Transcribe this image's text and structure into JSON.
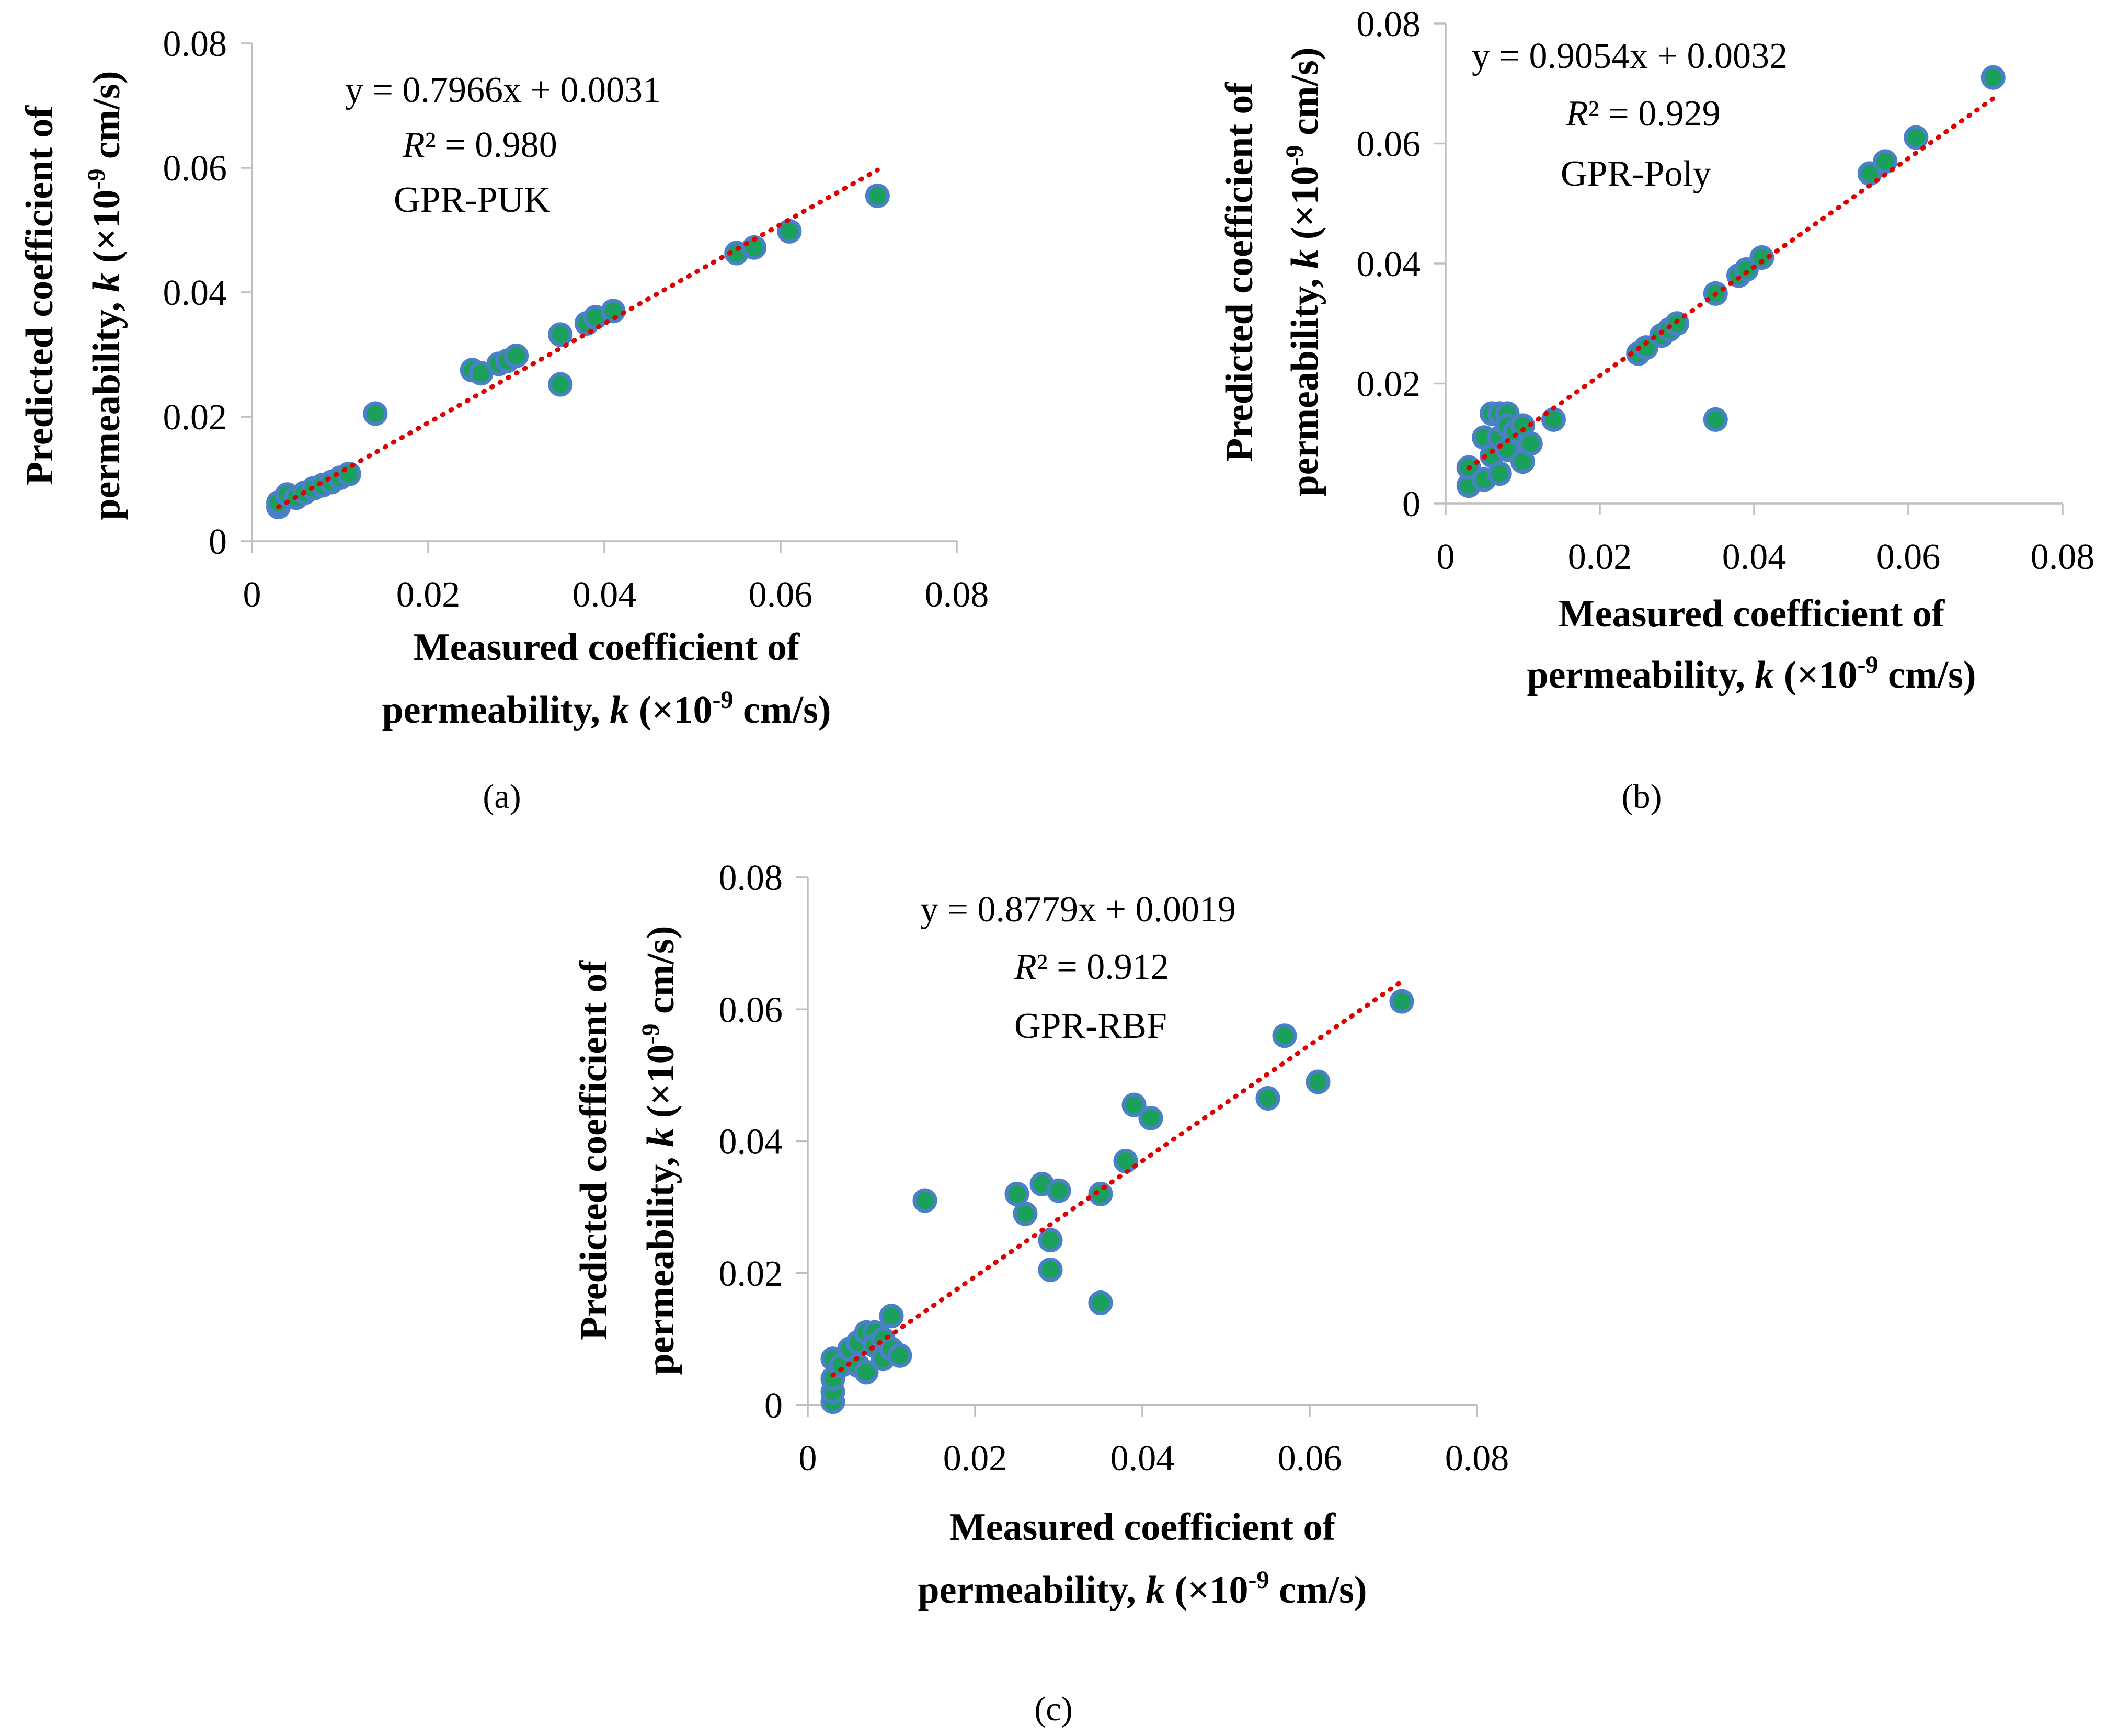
{
  "chart_data": [
    {
      "type": "scatter",
      "panel_label": "(a)",
      "annotation": {
        "equation": "y = 0.7966x + 0.0031",
        "r2_label": "R",
        "r2_value": "² = 0.980",
        "model": "GPR-PUK"
      },
      "xlabel": {
        "line1": "Measured coefficient of",
        "line2_pre": "permeability, ",
        "line2_k": "k",
        "line2_mid": " (×10",
        "line2_exp": "-9",
        "line2_post": " cm/s)"
      },
      "ylabel": {
        "line1": "Predicted coefficient of",
        "line2_pre": "permeability, ",
        "line2_k": "k",
        "line2_mid": " (×10",
        "line2_exp": "-9",
        "line2_post": " cm/s)"
      },
      "xlim": [
        0,
        0.08
      ],
      "ylim": [
        0,
        0.08
      ],
      "xticks": [
        "0",
        "0.02",
        "0.04",
        "0.06",
        "0.08"
      ],
      "yticks": [
        "0",
        "0.02",
        "0.04",
        "0.06",
        "0.08"
      ],
      "trendline": {
        "slope": 0.7966,
        "intercept": 0.0031,
        "x_range": [
          0.003,
          0.071
        ]
      },
      "points": [
        [
          0.003,
          0.0055
        ],
        [
          0.003,
          0.0062
        ],
        [
          0.004,
          0.0075
        ],
        [
          0.005,
          0.007
        ],
        [
          0.006,
          0.0078
        ],
        [
          0.007,
          0.0085
        ],
        [
          0.008,
          0.009
        ],
        [
          0.009,
          0.0095
        ],
        [
          0.01,
          0.0102
        ],
        [
          0.011,
          0.0108
        ],
        [
          0.014,
          0.0205
        ],
        [
          0.025,
          0.0275
        ],
        [
          0.026,
          0.027
        ],
        [
          0.028,
          0.0285
        ],
        [
          0.029,
          0.029
        ],
        [
          0.03,
          0.0298
        ],
        [
          0.035,
          0.0332
        ],
        [
          0.035,
          0.0252
        ],
        [
          0.038,
          0.035
        ],
        [
          0.039,
          0.036
        ],
        [
          0.041,
          0.037
        ],
        [
          0.055,
          0.0463
        ],
        [
          0.057,
          0.0472
        ],
        [
          0.061,
          0.0498
        ],
        [
          0.071,
          0.0555
        ]
      ]
    },
    {
      "type": "scatter",
      "panel_label": "(b)",
      "annotation": {
        "equation": "y = 0.9054x + 0.0032",
        "r2_label": "R",
        "r2_value": "² = 0.929",
        "model": "GPR-Poly"
      },
      "xlabel": {
        "line1": "Measured coefficient of",
        "line2_pre": "permeability, ",
        "line2_k": "k",
        "line2_mid": " (×10",
        "line2_exp": "-9",
        "line2_post": " cm/s)"
      },
      "ylabel": {
        "line1": "Predicted coefficient of",
        "line2_pre": "permeability, ",
        "line2_k": "k",
        "line2_mid": " (×10",
        "line2_exp": "-9",
        "line2_post": " cm/s)"
      },
      "xlim": [
        0,
        0.08
      ],
      "ylim": [
        0,
        0.08
      ],
      "xticks": [
        "0",
        "0.02",
        "0.04",
        "0.06",
        "0.08"
      ],
      "yticks": [
        "0",
        "0.02",
        "0.04",
        "0.06",
        "0.08"
      ],
      "trendline": {
        "slope": 0.9054,
        "intercept": 0.0032,
        "x_range": [
          0.003,
          0.071
        ]
      },
      "points": [
        [
          0.003,
          0.003
        ],
        [
          0.003,
          0.006
        ],
        [
          0.005,
          0.004
        ],
        [
          0.005,
          0.011
        ],
        [
          0.006,
          0.015
        ],
        [
          0.006,
          0.008
        ],
        [
          0.007,
          0.015
        ],
        [
          0.007,
          0.011
        ],
        [
          0.007,
          0.005
        ],
        [
          0.008,
          0.015
        ],
        [
          0.008,
          0.013
        ],
        [
          0.008,
          0.009
        ],
        [
          0.009,
          0.012
        ],
        [
          0.01,
          0.013
        ],
        [
          0.01,
          0.007
        ],
        [
          0.011,
          0.01
        ],
        [
          0.014,
          0.014
        ],
        [
          0.025,
          0.025
        ],
        [
          0.026,
          0.026
        ],
        [
          0.028,
          0.028
        ],
        [
          0.029,
          0.029
        ],
        [
          0.03,
          0.03
        ],
        [
          0.035,
          0.035
        ],
        [
          0.035,
          0.014
        ],
        [
          0.038,
          0.038
        ],
        [
          0.039,
          0.039
        ],
        [
          0.041,
          0.041
        ],
        [
          0.055,
          0.055
        ],
        [
          0.057,
          0.057
        ],
        [
          0.061,
          0.061
        ],
        [
          0.071,
          0.071
        ]
      ]
    },
    {
      "type": "scatter",
      "panel_label": "(c)",
      "annotation": {
        "equation": "y = 0.8779x + 0.0019",
        "r2_label": "R",
        "r2_value": "² = 0.912",
        "model": "GPR-RBF"
      },
      "xlabel": {
        "line1": "Measured coefficient of",
        "line2_pre": "permeability, ",
        "line2_k": "k",
        "line2_mid": " (×10",
        "line2_exp": "-9",
        "line2_post": " cm/s)"
      },
      "ylabel": {
        "line1": "Predicted coefficient of",
        "line2_pre": "permeability, ",
        "line2_k": "k",
        "line2_mid": " (×10",
        "line2_exp": "-9",
        "line2_post": " cm/s)"
      },
      "xlim": [
        0,
        0.08
      ],
      "ylim": [
        0,
        0.08
      ],
      "xticks": [
        "0",
        "0.02",
        "0.04",
        "0.06",
        "0.08"
      ],
      "yticks": [
        "0",
        "0.02",
        "0.04",
        "0.06",
        "0.08"
      ],
      "trendline": {
        "slope": 0.8779,
        "intercept": 0.0019,
        "x_range": [
          0.003,
          0.071
        ]
      },
      "points": [
        [
          0.003,
          0.0005
        ],
        [
          0.003,
          0.002
        ],
        [
          0.003,
          0.004
        ],
        [
          0.003,
          0.007
        ],
        [
          0.004,
          0.006
        ],
        [
          0.005,
          0.0085
        ],
        [
          0.006,
          0.0095
        ],
        [
          0.006,
          0.006
        ],
        [
          0.007,
          0.011
        ],
        [
          0.007,
          0.005
        ],
        [
          0.008,
          0.011
        ],
        [
          0.008,
          0.009
        ],
        [
          0.009,
          0.01
        ],
        [
          0.009,
          0.007
        ],
        [
          0.01,
          0.0135
        ],
        [
          0.01,
          0.0085
        ],
        [
          0.011,
          0.0075
        ],
        [
          0.014,
          0.031
        ],
        [
          0.025,
          0.032
        ],
        [
          0.026,
          0.029
        ],
        [
          0.028,
          0.0335
        ],
        [
          0.029,
          0.025
        ],
        [
          0.029,
          0.0205
        ],
        [
          0.03,
          0.0325
        ],
        [
          0.035,
          0.032
        ],
        [
          0.035,
          0.0155
        ],
        [
          0.038,
          0.037
        ],
        [
          0.039,
          0.0455
        ],
        [
          0.041,
          0.0435
        ],
        [
          0.055,
          0.0465
        ],
        [
          0.057,
          0.056
        ],
        [
          0.061,
          0.049
        ],
        [
          0.071,
          0.0612
        ]
      ]
    }
  ]
}
